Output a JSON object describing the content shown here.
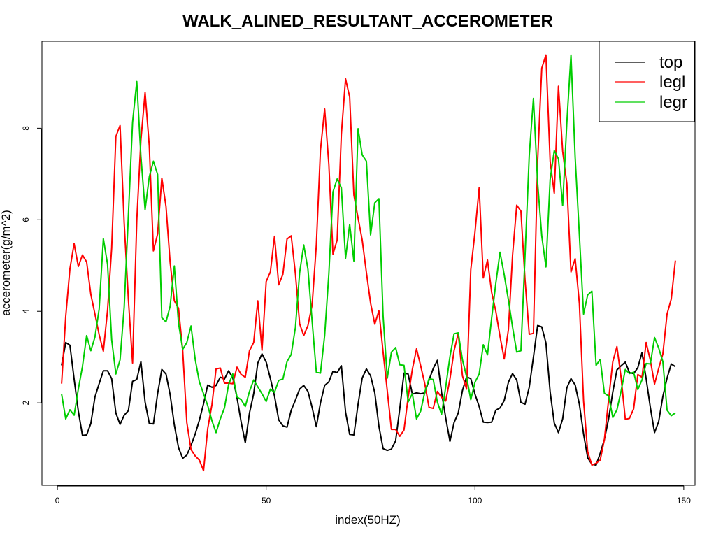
{
  "chart_data": {
    "type": "line",
    "title": "WALK_ALINED_RESULTANT_ACCEROMETER",
    "xlabel": "index(50HZ)",
    "ylabel": "accerometer(g/m^2)",
    "xlim": [
      -3.7,
      152.7
    ],
    "ylim": [
      0.2,
      9.9
    ],
    "x_ticks": [
      0,
      50,
      100,
      150
    ],
    "y_ticks": [
      2,
      4,
      6,
      8
    ],
    "grid": false,
    "legend_position": "top-right",
    "series": [
      {
        "name": "top",
        "color": "#000000",
        "x_start": 1,
        "x_step": 1,
        "values": [
          2.82,
          3.32,
          3.26,
          2.52,
          1.82,
          1.29,
          1.3,
          1.55,
          2.13,
          2.42,
          2.7,
          2.7,
          2.53,
          1.78,
          1.53,
          1.73,
          1.83,
          2.47,
          2.51,
          2.9,
          2.02,
          1.55,
          1.54,
          2.2,
          2.73,
          2.63,
          2.18,
          1.52,
          1.02,
          0.79,
          0.86,
          1.07,
          1.32,
          1.62,
          1.98,
          2.39,
          2.34,
          2.38,
          2.56,
          2.52,
          2.7,
          2.55,
          2.12,
          1.58,
          1.13,
          1.78,
          2.2,
          2.87,
          3.07,
          2.89,
          2.53,
          2.15,
          1.63,
          1.5,
          1.47,
          1.84,
          2.06,
          2.3,
          2.38,
          2.25,
          1.9,
          1.48,
          2.0,
          2.38,
          2.46,
          2.69,
          2.66,
          2.81,
          1.8,
          1.31,
          1.3,
          1.97,
          2.54,
          2.74,
          2.59,
          2.22,
          1.49,
          1.0,
          0.96,
          0.99,
          1.17,
          1.88,
          2.65,
          2.63,
          2.19,
          2.22,
          2.2,
          2.22,
          2.5,
          2.75,
          2.93,
          2.23,
          1.67,
          1.16,
          1.57,
          1.78,
          2.27,
          2.57,
          2.53,
          2.19,
          1.92,
          1.58,
          1.57,
          1.58,
          1.84,
          1.89,
          2.05,
          2.45,
          2.64,
          2.5,
          2.01,
          1.97,
          2.34,
          3.0,
          3.69,
          3.66,
          3.31,
          2.24,
          1.56,
          1.35,
          1.65,
          2.33,
          2.53,
          2.39,
          1.97,
          1.32,
          0.8,
          0.66,
          0.64,
          0.9,
          1.2,
          1.65,
          2.24,
          2.72,
          2.81,
          2.89,
          2.66,
          2.64,
          2.77,
          3.1,
          2.53,
          1.9,
          1.35,
          1.59,
          2.14,
          2.54,
          2.85,
          2.79
        ]
      },
      {
        "name": "legl",
        "color": "#ff0000",
        "x_start": 1,
        "x_step": 1,
        "values": [
          2.42,
          3.89,
          4.93,
          5.48,
          4.98,
          5.23,
          5.08,
          4.37,
          3.94,
          3.49,
          3.13,
          4.02,
          5.38,
          7.82,
          8.06,
          5.93,
          4.26,
          2.87,
          5.98,
          7.74,
          8.78,
          7.61,
          5.32,
          5.69,
          6.91,
          6.29,
          5.07,
          4.23,
          4.07,
          3.14,
          1.57,
          0.98,
          0.84,
          0.75,
          0.52,
          1.44,
          1.96,
          2.74,
          2.76,
          2.43,
          2.43,
          2.42,
          2.78,
          2.62,
          2.56,
          3.14,
          3.32,
          4.23,
          3.15,
          4.65,
          4.86,
          5.64,
          4.58,
          4.81,
          5.58,
          5.65,
          4.82,
          3.73,
          3.47,
          3.69,
          4.14,
          5.45,
          7.52,
          8.42,
          7.21,
          5.25,
          5.56,
          7.87,
          9.08,
          8.68,
          6.54,
          6.04,
          5.56,
          4.85,
          4.18,
          3.72,
          4.01,
          3.11,
          2.26,
          1.42,
          1.42,
          1.27,
          1.41,
          2.12,
          2.73,
          3.18,
          2.81,
          2.41,
          1.9,
          1.88,
          2.25,
          2.12,
          2.04,
          2.52,
          3.14,
          3.52,
          2.59,
          2.3,
          4.91,
          5.73,
          6.7,
          4.73,
          5.12,
          4.41,
          4.0,
          3.45,
          2.96,
          3.6,
          5.22,
          6.32,
          6.19,
          4.68,
          3.5,
          3.52,
          7.27,
          9.31,
          9.6,
          7.28,
          6.58,
          8.92,
          7.5,
          6.79,
          4.86,
          5.15,
          4.17,
          2.04,
          0.93,
          0.64,
          0.68,
          0.75,
          1.2,
          2.07,
          2.9,
          3.23,
          2.55,
          1.64,
          1.66,
          1.87,
          2.62,
          2.56,
          3.32,
          2.93,
          2.41,
          2.75,
          3.07,
          3.94,
          4.27,
          5.11
        ]
      },
      {
        "name": "legr",
        "color": "#00cd00",
        "x_start": 1,
        "x_step": 1,
        "values": [
          2.19,
          1.65,
          1.85,
          1.73,
          2.3,
          2.79,
          3.47,
          3.14,
          3.44,
          4.05,
          5.59,
          5.03,
          3.38,
          2.63,
          2.94,
          4.09,
          6.1,
          8.13,
          9.02,
          7.39,
          6.22,
          6.94,
          7.28,
          6.99,
          3.86,
          3.77,
          4.11,
          4.99,
          3.74,
          3.17,
          3.32,
          3.68,
          2.95,
          2.46,
          2.2,
          1.94,
          1.61,
          1.35,
          1.65,
          1.89,
          2.4,
          2.63,
          2.13,
          2.07,
          1.92,
          2.25,
          2.5,
          2.35,
          2.2,
          2.03,
          2.3,
          2.23,
          2.49,
          2.52,
          2.9,
          3.06,
          3.65,
          4.84,
          5.45,
          4.92,
          3.78,
          2.67,
          2.65,
          3.47,
          4.82,
          6.61,
          6.89,
          6.7,
          5.16,
          5.9,
          5.1,
          7.99,
          7.42,
          7.28,
          5.67,
          6.37,
          6.46,
          3.9,
          2.54,
          3.11,
          3.21,
          2.83,
          2.82,
          2.02,
          2.2,
          1.65,
          1.82,
          2.24,
          2.53,
          2.51,
          2.02,
          1.75,
          2.35,
          3.01,
          3.51,
          3.53,
          2.94,
          2.57,
          2.07,
          2.45,
          2.63,
          3.27,
          3.05,
          3.86,
          4.61,
          5.29,
          4.8,
          4.25,
          3.66,
          3.11,
          3.14,
          5.22,
          7.4,
          8.65,
          6.81,
          5.65,
          4.97,
          6.88,
          7.51,
          7.33,
          6.31,
          8.12,
          9.6,
          7.36,
          5.67,
          3.94,
          4.36,
          4.44,
          2.82,
          2.95,
          2.21,
          2.15,
          1.68,
          1.85,
          2.26,
          2.73,
          2.64,
          2.67,
          2.29,
          2.5,
          2.86,
          2.85,
          3.43,
          3.2,
          2.9,
          1.84,
          1.72,
          1.78
        ]
      }
    ]
  }
}
